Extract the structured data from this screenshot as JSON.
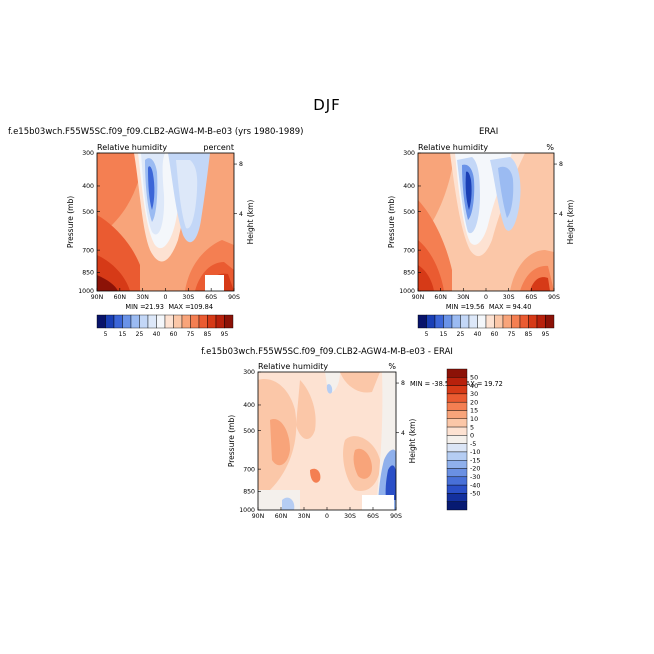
{
  "page": {
    "season_title": "DJF"
  },
  "chart_data": [
    {
      "type": "heatmap",
      "panel": "model",
      "case_title": "f.e15b03wch.F55W5SC.f09_f09.CLB2-AGW4-M-B-e03 (yrs 1980-1989)",
      "left_label": "Relative humidity",
      "right_label": "percent",
      "xlabel": "",
      "ylabel": "Pressure (mb)",
      "y2label": "Height (km)",
      "x_ticks": [
        "90N",
        "60N",
        "30N",
        "0",
        "30S",
        "60S",
        "90S"
      ],
      "y_ticks": [
        "300",
        "400",
        "500",
        "700",
        "850",
        "1000"
      ],
      "y2_ticks": [
        "8",
        "4"
      ],
      "ylim": [
        1000,
        300
      ],
      "stats": {
        "min_label": "MIN =",
        "min": "21.93",
        "max_label": "MAX =",
        "max": "109.84"
      }
    },
    {
      "type": "heatmap",
      "panel": "obs",
      "case_title": "ERAI",
      "left_label": "Relative humidity",
      "right_label": "%",
      "xlabel": "",
      "ylabel": "Pressure (mb)",
      "y2label": "Height (km)",
      "x_ticks": [
        "90N",
        "60N",
        "30N",
        "0",
        "30S",
        "60S",
        "90S"
      ],
      "y_ticks": [
        "300",
        "400",
        "500",
        "700",
        "850",
        "1000"
      ],
      "y2_ticks": [
        "8",
        "4"
      ],
      "ylim": [
        1000,
        300
      ],
      "stats": {
        "min_label": "MIN =",
        "min": "19.56",
        "max_label": "MAX =",
        "max": "94.40"
      }
    },
    {
      "type": "heatmap",
      "panel": "difference",
      "case_title": "f.e15b03wch.F55W5SC.f09_f09.CLB2-AGW4-M-B-e03 - ERAI",
      "left_label": "Relative humidity",
      "right_label": "%",
      "xlabel": "",
      "ylabel": "Pressure (mb)",
      "y2label": "Height (km)",
      "x_ticks": [
        "90N",
        "60N",
        "30N",
        "0",
        "30S",
        "60S",
        "90S"
      ],
      "y_ticks": [
        "300",
        "400",
        "500",
        "700",
        "850",
        "1000"
      ],
      "y2_ticks": [
        "8",
        "4"
      ],
      "ylim": [
        1000,
        300
      ],
      "stats": {
        "min_label": "MIN =",
        "min": "-38.57",
        "max_label": "MAX =",
        "max": "19.72"
      }
    }
  ],
  "colorbar_abs": {
    "labels": [
      "5",
      "15",
      "25",
      "40",
      "60",
      "75",
      "85",
      "95"
    ],
    "colors": [
      "#08136a",
      "#1a3fb5",
      "#3c66d8",
      "#6a93e8",
      "#9bbbf2",
      "#c3d7f7",
      "#dde8f9",
      "#f4f7fb",
      "#fde2d2",
      "#fbc7a8",
      "#f8a47a",
      "#f47f52",
      "#ea5b31",
      "#d63a17",
      "#b8210c",
      "#8c1207"
    ]
  },
  "colorbar_diff": {
    "labels": [
      "50",
      "40",
      "30",
      "20",
      "15",
      "10",
      "5",
      "0",
      "-5",
      "-10",
      "-15",
      "-20",
      "-30",
      "-40",
      "-50"
    ],
    "colors": [
      "#8c1207",
      "#b8210c",
      "#d63a17",
      "#ea5b31",
      "#f47f52",
      "#f8a47a",
      "#fbc7a8",
      "#fde2d2",
      "#f4f0ec",
      "#dbe5f6",
      "#b5cdf3",
      "#8fb0ec",
      "#6a90e3",
      "#4870d8",
      "#2a4fc7",
      "#13309e",
      "#071a72"
    ]
  }
}
